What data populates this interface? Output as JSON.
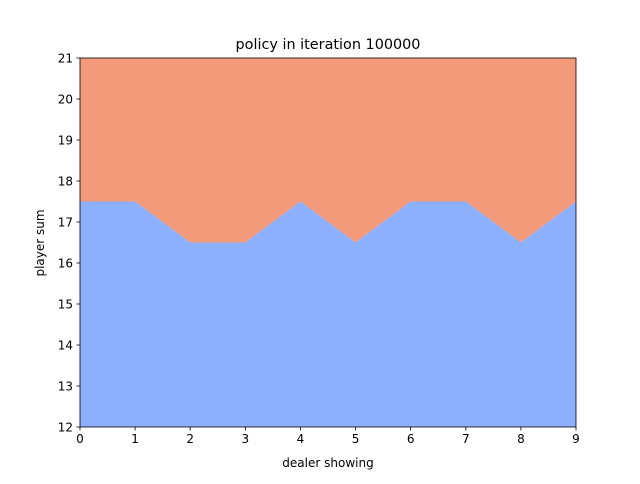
{
  "chart_data": {
    "type": "area",
    "title": "policy in iteration 100000",
    "xlabel": "dealer showing",
    "ylabel": "player sum",
    "xlim": [
      0,
      9
    ],
    "ylim": [
      12,
      21
    ],
    "x_ticks": [
      "0",
      "1",
      "2",
      "3",
      "4",
      "5",
      "6",
      "7",
      "8",
      "9"
    ],
    "y_ticks": [
      "12",
      "13",
      "14",
      "15",
      "16",
      "17",
      "18",
      "19",
      "20",
      "21"
    ],
    "grid": false,
    "x": [
      0,
      1,
      2,
      3,
      4,
      5,
      6,
      7,
      8,
      9
    ],
    "boundary": [
      17.5,
      17.5,
      16.5,
      16.5,
      17.5,
      16.5,
      17.5,
      17.5,
      16.5,
      17.5
    ],
    "regions": [
      {
        "position": "below boundary",
        "color": "#8caffe"
      },
      {
        "position": "above boundary",
        "color": "#f39a7b"
      }
    ]
  }
}
